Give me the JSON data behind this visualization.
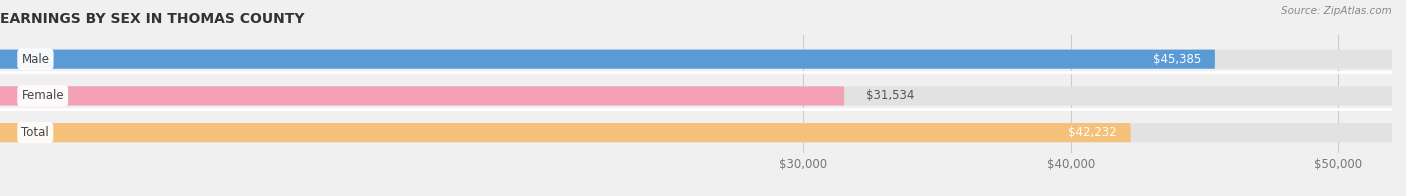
{
  "title": "EARNINGS BY SEX IN THOMAS COUNTY",
  "source": "Source: ZipAtlas.com",
  "categories": [
    "Male",
    "Female",
    "Total"
  ],
  "values": [
    45385,
    31534,
    42232
  ],
  "bar_colors": [
    "#5b9bd5",
    "#f4a0b5",
    "#f5c07a"
  ],
  "value_labels": [
    "$45,385",
    "$31,534",
    "$42,232"
  ],
  "label_inside": [
    true,
    false,
    true
  ],
  "xlim_min": 0,
  "xlim_max": 52000,
  "xaxis_min": 28000,
  "xticks": [
    30000,
    40000,
    50000
  ],
  "xtick_labels": [
    "$30,000",
    "$40,000",
    "$50,000"
  ],
  "background_color": "#f0f0f0",
  "bar_bg_color": "#e2e2e2",
  "bar_sep_color": "#ffffff",
  "title_fontsize": 10,
  "tick_fontsize": 8.5,
  "bar_height": 0.52,
  "bar_label_fontsize": 8.5,
  "cat_label_fontsize": 8.5
}
